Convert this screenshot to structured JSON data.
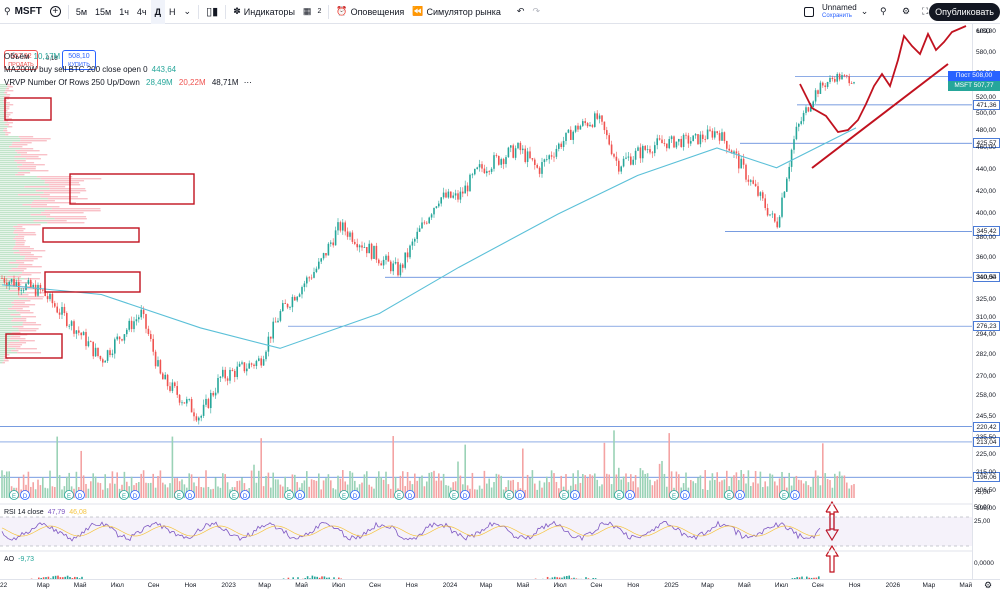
{
  "topbar": {
    "symbol": "MSFT",
    "add_symbol": "+",
    "intervals": [
      "5м",
      "15м",
      "1ч",
      "4ч",
      "Д",
      "Н"
    ],
    "chart_type": "Свечи",
    "indicators_label": "Индикаторы",
    "templates_count": "2",
    "alerts_label": "Оповещения",
    "replay_label": "Симулятор рынка",
    "layout_name": "Unnamed",
    "layout_status": "Сохранить",
    "publish_label": "Опубликовать"
  },
  "trade": {
    "sell_price": "507,92",
    "sell_label": "ПРОДАТЬ",
    "spread": "0,18",
    "buy_price": "508,10",
    "buy_label": "КУПИТЬ"
  },
  "legends": {
    "volume_label": "Объём",
    "volume_value": "10,17M",
    "ma_label": "MA200W buy sell BTC 200 close open 0",
    "ma_value": "443,64",
    "vrvp_label": "VRVP Number Of Rows 250 Up/Down",
    "vrvp_up": "28,49M",
    "vrvp_down": "20,22M",
    "vrvp_total": "48,71M",
    "rsi_label": "RSI 14 close",
    "rsi_value": "47,79",
    "rsi_ma": "46,08",
    "ao_label": "AO",
    "ao_value": "-9,73"
  },
  "price_axis": {
    "currency": "USD",
    "ticks": [
      "600,00",
      "580,00",
      "560,00",
      "540,00",
      "520,00",
      "500,00",
      "480,00",
      "460,00",
      "440,00",
      "420,00",
      "400,00",
      "380,00",
      "360,00",
      "340,00",
      "325,00",
      "310,00",
      "294,00",
      "282,00",
      "270,00",
      "258,00",
      "245,50",
      "235,50",
      "225,00",
      "215,00",
      "206,50",
      "198,00"
    ],
    "level_labels": [
      "515,33",
      "471,36",
      "425,57",
      "345,42",
      "310,54",
      "276,23",
      "220,42",
      "213,04",
      "196,06"
    ],
    "last_label": "Пост",
    "last_value": "508,00",
    "symbol_label": "MSFT",
    "symbol_value": "507,77",
    "rsi_ticks": [
      "75,00",
      "50,00",
      "25,00"
    ],
    "ao_ticks": [
      "0,0000"
    ]
  },
  "time_axis": {
    "labels": [
      "22",
      "Мар",
      "Май",
      "Июл",
      "Сен",
      "Ноя",
      "2023",
      "Мар",
      "Май",
      "Июл",
      "Сен",
      "Ноя",
      "2024",
      "Мар",
      "Май",
      "Июл",
      "Сен",
      "Ноя",
      "2025",
      "Мар",
      "Май",
      "Июл",
      "Сен",
      "Ноя",
      "2026",
      "Мар",
      "Май"
    ]
  },
  "earnings_markers": [
    "E",
    "D"
  ],
  "colors": {
    "up": "#26a69a",
    "down": "#ef5350",
    "ma": "#5bc0d8",
    "annotation": "#c1121f",
    "volume_up": "#9ad2b6",
    "volume_down": "#f4a3a3"
  },
  "chart_data": {
    "type": "candlestick",
    "symbol": "MSFT",
    "approx_close_path": [
      {
        "t": "2022-01",
        "p": 310
      },
      {
        "t": "2022-03",
        "p": 300
      },
      {
        "t": "2022-04",
        "p": 285
      },
      {
        "t": "2022-06",
        "p": 255
      },
      {
        "t": "2022-08",
        "p": 285
      },
      {
        "t": "2022-09",
        "p": 245
      },
      {
        "t": "2022-11",
        "p": 225
      },
      {
        "t": "2022-12",
        "p": 245
      },
      {
        "t": "2023-02",
        "p": 255
      },
      {
        "t": "2023-03",
        "p": 285
      },
      {
        "t": "2023-05",
        "p": 320
      },
      {
        "t": "2023-06",
        "p": 350
      },
      {
        "t": "2023-08",
        "p": 325
      },
      {
        "t": "2023-09",
        "p": 315
      },
      {
        "t": "2023-11",
        "p": 375
      },
      {
        "t": "2023-12",
        "p": 375
      },
      {
        "t": "2024-01",
        "p": 400
      },
      {
        "t": "2024-03",
        "p": 420
      },
      {
        "t": "2024-04",
        "p": 400
      },
      {
        "t": "2024-06",
        "p": 445
      },
      {
        "t": "2024-07",
        "p": 455
      },
      {
        "t": "2024-08",
        "p": 405
      },
      {
        "t": "2024-10",
        "p": 425
      },
      {
        "t": "2024-12",
        "p": 430
      },
      {
        "t": "2025-01",
        "p": 440
      },
      {
        "t": "2025-02",
        "p": 410
      },
      {
        "t": "2025-04",
        "p": 350
      },
      {
        "t": "2025-05",
        "p": 440
      },
      {
        "t": "2025-06",
        "p": 490
      },
      {
        "t": "2025-07",
        "p": 515
      },
      {
        "t": "2025-08",
        "p": 508
      }
    ],
    "ma200": [
      {
        "t": "2022-01",
        "p": 305
      },
      {
        "t": "2022-06",
        "p": 298
      },
      {
        "t": "2022-11",
        "p": 275
      },
      {
        "t": "2023-03",
        "p": 262
      },
      {
        "t": "2023-08",
        "p": 285
      },
      {
        "t": "2023-12",
        "p": 318
      },
      {
        "t": "2024-05",
        "p": 360
      },
      {
        "t": "2024-09",
        "p": 395
      },
      {
        "t": "2025-01",
        "p": 420
      },
      {
        "t": "2025-04",
        "p": 402
      },
      {
        "t": "2025-08",
        "p": 443.64
      }
    ],
    "horizontal_levels": [
      515.33,
      471.36,
      425.57,
      345.42,
      310.54,
      276.23,
      220.42,
      213.04,
      196.06
    ],
    "price_range": [
      190,
      605
    ]
  }
}
